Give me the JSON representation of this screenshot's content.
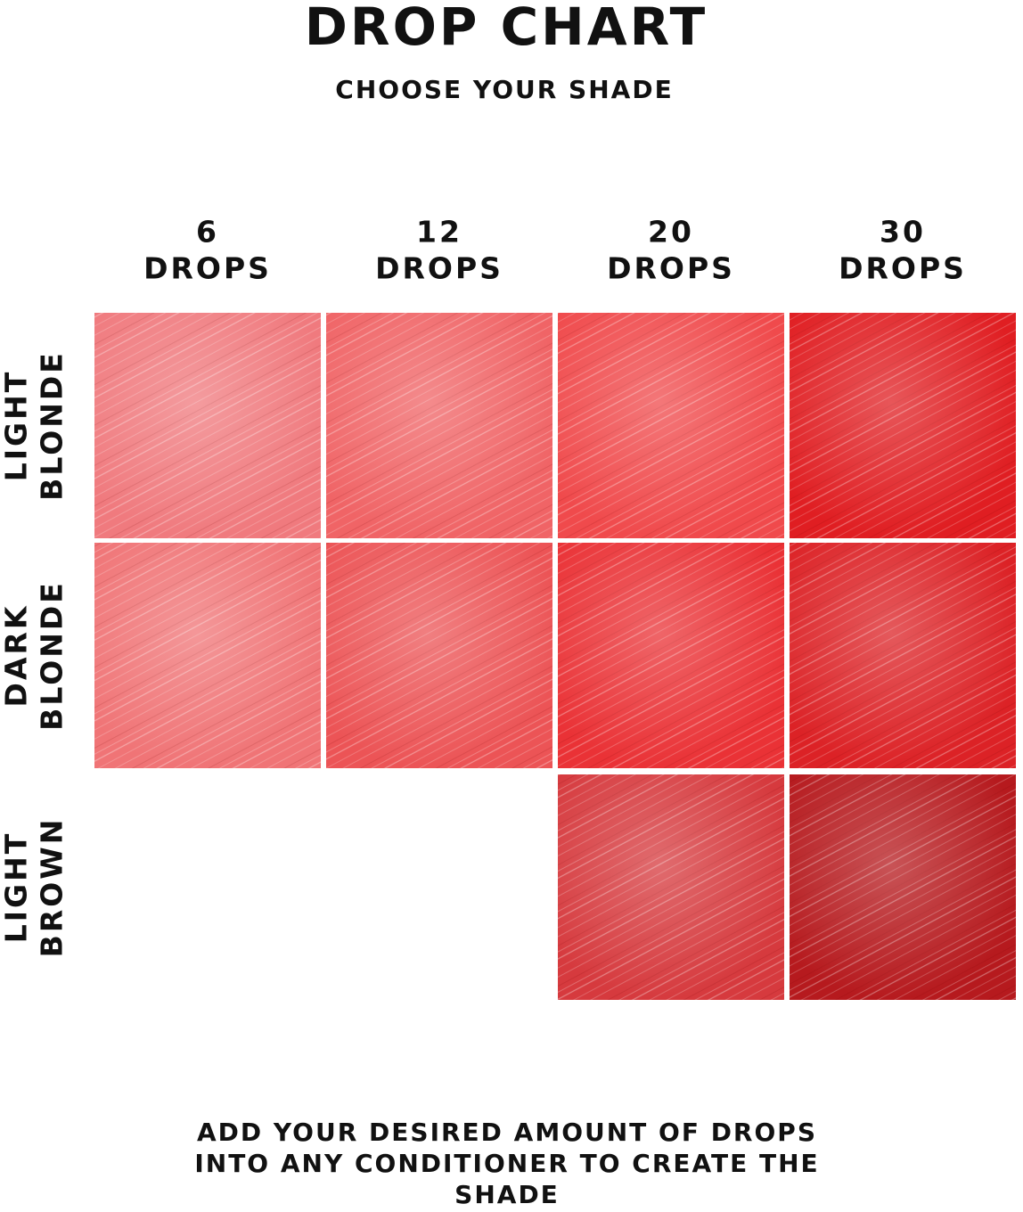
{
  "header": {
    "title": "DROP CHART",
    "subtitle": "CHOOSE YOUR SHADE"
  },
  "columns": [
    {
      "count": "6",
      "unit": "DROPS"
    },
    {
      "count": "12",
      "unit": "DROPS"
    },
    {
      "count": "20",
      "unit": "DROPS"
    },
    {
      "count": "30",
      "unit": "DROPS"
    }
  ],
  "rows": [
    {
      "label": [
        "LIGHT",
        "BLONDE"
      ],
      "swatches": [
        "#f07a7e",
        "#f06466",
        "#f04a4c",
        "#e01e22"
      ]
    },
    {
      "label": [
        "DARK",
        "BLONDE"
      ],
      "swatches": [
        "#f07476",
        "#ec5456",
        "#ea3236",
        "#dc2226"
      ]
    },
    {
      "label": [
        "LIGHT",
        "BROWN"
      ],
      "swatches": [
        null,
        null,
        "#d63a3e",
        "#b61a1e"
      ]
    }
  ],
  "footer": [
    "ADD YOUR DESIRED AMOUNT OF DROPS",
    "INTO ANY CONDITIONER TO CREATE THE",
    "SHADE"
  ]
}
